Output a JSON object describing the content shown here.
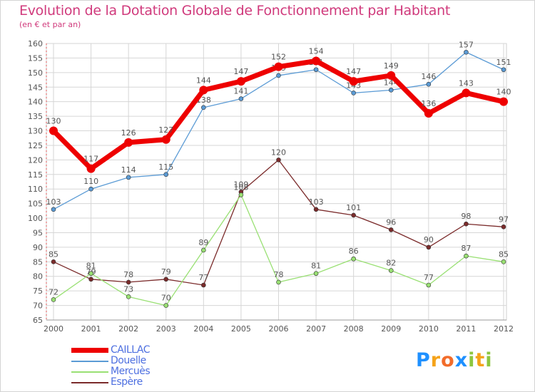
{
  "header": {
    "title": "Evolution de la Dotation Globale de Fonctionnement par Habitant",
    "subtitle": "(en € et par an)"
  },
  "chart_data": {
    "type": "line",
    "title": "Evolution de la Dotation Globale de Fonctionnement par Habitant",
    "subtitle": "(en € et par an)",
    "xlabel": "",
    "ylabel": "",
    "ylim": [
      65,
      160
    ],
    "y_tick_step": 5,
    "grid": true,
    "categories": [
      "2000",
      "2001",
      "2002",
      "2003",
      "2004",
      "2005",
      "2006",
      "2007",
      "2008",
      "2009",
      "2010",
      "2011",
      "2012"
    ],
    "series": [
      {
        "name": "CAILLAC",
        "color": "#ee0000",
        "values": [
          130,
          117,
          126,
          127,
          144,
          147,
          152,
          154,
          147,
          149,
          136,
          143,
          140
        ]
      },
      {
        "name": "Douelle",
        "color": "#5b9bd5",
        "values": [
          103,
          110,
          114,
          115,
          138,
          141,
          149,
          151,
          143,
          144,
          146,
          157,
          151
        ]
      },
      {
        "name": "Mercuès",
        "color": "#99e073",
        "values": [
          72,
          81,
          73,
          70,
          89,
          108,
          78,
          81,
          86,
          82,
          77,
          87,
          85
        ]
      },
      {
        "name": "Espère",
        "color": "#7b2b2b",
        "values": [
          85,
          79,
          78,
          79,
          77,
          109,
          120,
          103,
          101,
          96,
          90,
          98,
          97
        ]
      }
    ],
    "legend_position": "bottom-left"
  },
  "logo": {
    "letters": [
      "P",
      "r",
      "o",
      "x",
      "i",
      "t",
      "i"
    ],
    "colors": [
      "#1e90ff",
      "#f5a31a",
      "#f26c2a",
      "#1e90ff",
      "#8dc63f",
      "#f5a31a",
      "#8dc63f"
    ]
  }
}
